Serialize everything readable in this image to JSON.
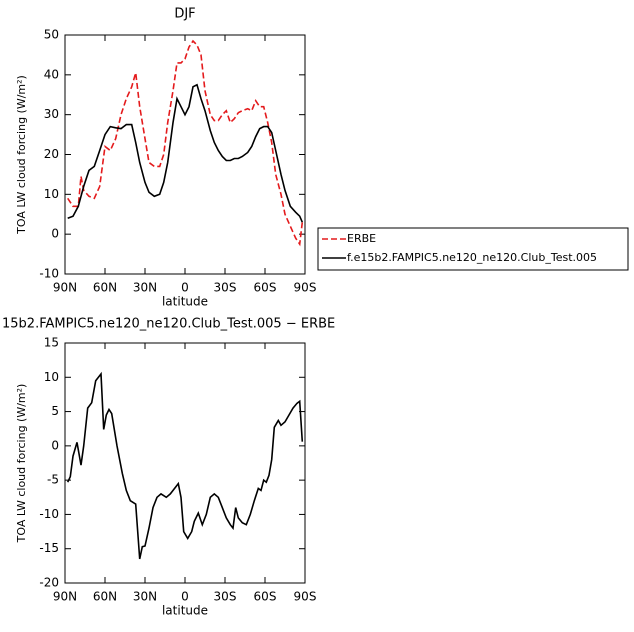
{
  "chart_data": [
    {
      "type": "line",
      "title": "DJF",
      "x_label": "latitude",
      "y_label": "TOA LW cloud forcing (W/m²)",
      "xlim": [
        90,
        -90
      ],
      "xticks": [
        {
          "value": 90,
          "label": "90N"
        },
        {
          "value": 60,
          "label": "60N"
        },
        {
          "value": 30,
          "label": "30N"
        },
        0,
        {
          "value": -30,
          "label": "30S"
        },
        {
          "value": -60,
          "label": "60S"
        },
        {
          "value": -90,
          "label": "90S"
        }
      ],
      "ylim": [
        -10,
        50
      ],
      "yticks": [
        -10,
        0,
        10,
        20,
        30,
        40,
        50
      ],
      "legend": "right",
      "x": [
        88,
        84,
        80,
        78,
        76,
        72,
        68,
        64,
        60,
        56,
        52,
        48,
        44,
        40,
        37,
        34,
        30,
        27,
        23,
        19,
        16,
        13,
        9,
        6,
        3,
        0,
        -3,
        -6,
        -9,
        -12,
        -15,
        -19,
        -22,
        -25,
        -28,
        -31,
        -34,
        -37,
        -40,
        -43,
        -47,
        -50,
        -53,
        -56,
        -59,
        -62,
        -65,
        -68,
        -72,
        -75,
        -79,
        -83,
        -86,
        -88
      ],
      "series": [
        {
          "name": "ERBE",
          "color": "#e41a1c",
          "style": "dashed",
          "values": [
            9,
            7,
            7,
            14.5,
            11,
            9.5,
            9,
            12,
            22,
            21,
            24,
            30,
            34,
            37,
            40.5,
            32,
            24,
            18,
            17,
            17,
            20,
            28,
            36,
            43,
            43,
            44,
            47,
            48.5,
            47.5,
            45,
            36,
            30,
            28.5,
            28.5,
            30,
            31,
            28,
            29,
            30.5,
            31,
            31.5,
            31,
            33.5,
            32,
            32,
            28,
            23,
            15,
            10,
            5,
            2,
            -1,
            -2.5,
            3
          ]
        },
        {
          "name": "f.e15b2.FAMPIC5.ne120_ne120.Club_Test.005",
          "color": "#000000",
          "style": "solid",
          "values": [
            4,
            4.5,
            7,
            9.5,
            12,
            16,
            17,
            21,
            25,
            27,
            26.7,
            26.5,
            27.5,
            27.5,
            23,
            18,
            13,
            10.5,
            9.5,
            10,
            13,
            18,
            28,
            34,
            32,
            30,
            32,
            37,
            37.5,
            34,
            31,
            26,
            23,
            21,
            19.5,
            18.5,
            18.5,
            19,
            19,
            19.5,
            20.5,
            22,
            24.5,
            26.5,
            27,
            27,
            25.5,
            21,
            15,
            11,
            7,
            5.5,
            4.5,
            3
          ]
        }
      ]
    },
    {
      "type": "line",
      "title": "15b2.FAMPIC5.ne120_ne120.Club_Test.005 − ERBE",
      "x_label": "latitude",
      "y_label": "TOA LW cloud forcing (W/m²)",
      "xlim": [
        90,
        -90
      ],
      "xticks": [
        {
          "value": 90,
          "label": "90N"
        },
        {
          "value": 60,
          "label": "60N"
        },
        {
          "value": 30,
          "label": "30N"
        },
        0,
        {
          "value": -30,
          "label": "30S"
        },
        {
          "value": -60,
          "label": "60S"
        },
        {
          "value": -90,
          "label": "90S"
        }
      ],
      "ylim": [
        -20,
        15
      ],
      "yticks": [
        -20,
        -15,
        -10,
        -5,
        0,
        5,
        10,
        15
      ],
      "x": [
        88,
        86,
        84,
        81,
        78,
        76,
        73,
        70,
        67,
        63,
        61,
        59,
        57,
        55,
        51,
        47,
        44,
        41,
        37,
        34,
        32,
        30,
        27,
        24,
        21,
        18,
        14,
        11,
        5,
        3,
        1,
        -2,
        -5,
        -7,
        -10,
        -13,
        -16,
        -19,
        -22,
        -25,
        -28,
        -31,
        -34,
        -36,
        -38,
        -40,
        -43,
        -46,
        -49,
        -52,
        -55,
        -57,
        -59,
        -61,
        -63,
        -65,
        -67,
        -70,
        -72,
        -75,
        -78,
        -81,
        -84,
        -86,
        -88
      ],
      "series": [
        {
          "color": "#000000",
          "style": "solid",
          "values": [
            -5.3,
            -4.5,
            -1.5,
            0.5,
            -2.8,
            0,
            5.5,
            6.3,
            9.5,
            10.5,
            2.4,
            4.5,
            5.3,
            4.7,
            0,
            -4,
            -6.5,
            -8,
            -8.5,
            -16.5,
            -14.7,
            -14.6,
            -12,
            -9,
            -7.5,
            -7,
            -7.5,
            -7,
            -5.5,
            -7.5,
            -12.5,
            -13.5,
            -12.5,
            -11,
            -9.8,
            -11.5,
            -10,
            -7.5,
            -7,
            -7.5,
            -9,
            -10.5,
            -11.5,
            -12,
            -9,
            -10.5,
            -11.2,
            -11.5,
            -10,
            -8,
            -6.2,
            -6.5,
            -5,
            -5.3,
            -4.3,
            -2,
            2.7,
            3.7,
            3,
            3.5,
            4.5,
            5.5,
            6.2,
            6.5,
            0.6
          ]
        }
      ]
    }
  ]
}
